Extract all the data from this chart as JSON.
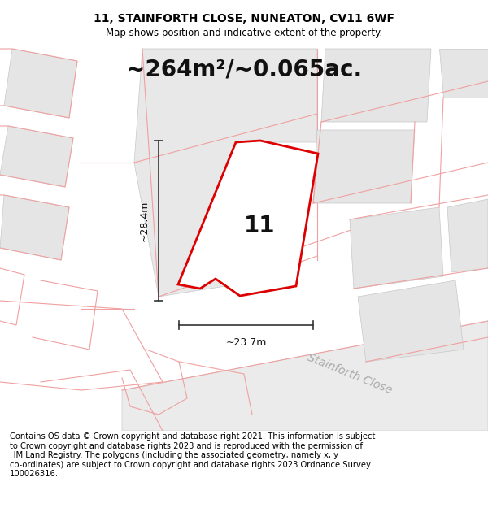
{
  "title": "11, STAINFORTH CLOSE, NUNEATON, CV11 6WF",
  "subtitle": "Map shows position and indicative extent of the property.",
  "area_label": "~264m²/~0.065ac.",
  "dim_height": "~28.4m",
  "dim_width": "~23.7m",
  "plot_number": "11",
  "road_label": "Stainforth Close",
  "footer": "Contains OS data © Crown copyright and database right 2021. This information is subject\nto Crown copyright and database rights 2023 and is reproduced with the permission of\nHM Land Registry. The polygons (including the associated geometry, namely x, y\nco-ordinates) are subject to Crown copyright and database rights 2023 Ordnance Survey\n100026316.",
  "bg_color": "#ffffff",
  "map_bg": "#ffffff",
  "plot_fill": "#ffffff",
  "plot_edge": "#dd0000",
  "bg_building_fill": "#e8e8e8",
  "bg_building_edge": "#f0a0a0",
  "title_fontsize": 10,
  "subtitle_fontsize": 8.5,
  "area_fontsize": 20,
  "plot_num_fontsize": 20,
  "footer_fontsize": 7.2,
  "dim_fontsize": 9
}
